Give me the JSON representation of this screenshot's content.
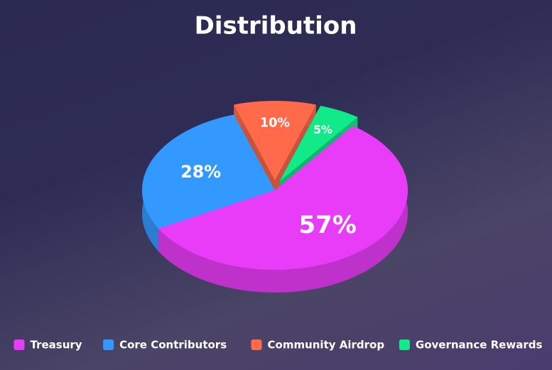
{
  "chart_data": {
    "type": "pie",
    "title": "Distribution",
    "categories": [
      "Treasury",
      "Core Contributors",
      "Community Airdrop",
      "Governance Rewards"
    ],
    "values": [
      57,
      28,
      10,
      5
    ],
    "value_labels": [
      "57%",
      "28%",
      "10%",
      "5%"
    ],
    "colors": [
      "#e83cf8",
      "#3399ff",
      "#ff6a4a",
      "#12ea8a"
    ],
    "legend": "bottom"
  }
}
